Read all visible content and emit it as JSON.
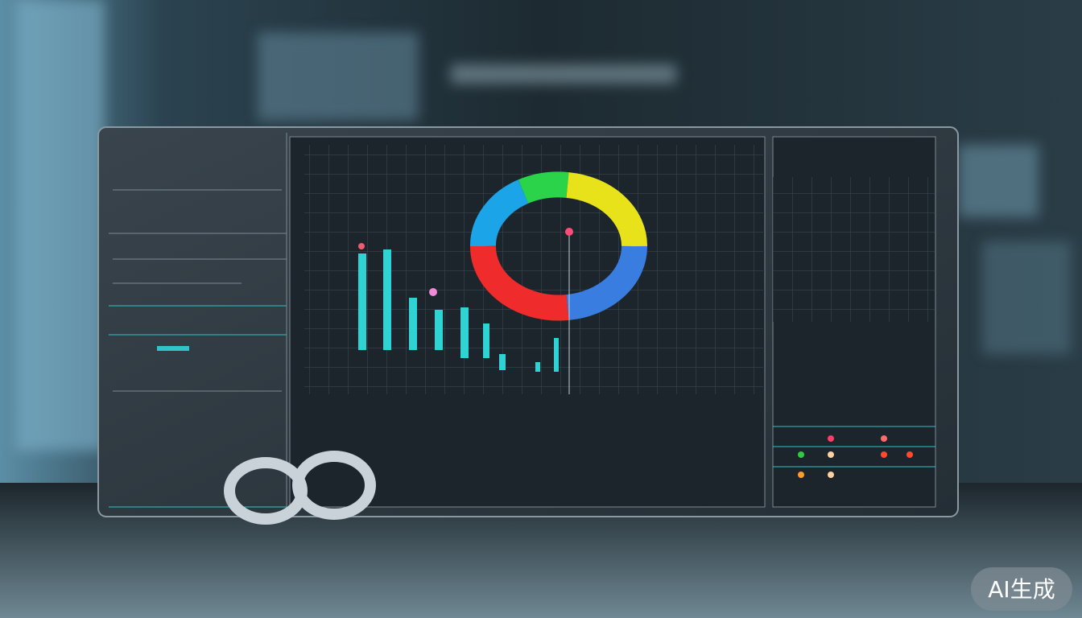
{
  "watermark": {
    "text": "AI生成"
  }
}
